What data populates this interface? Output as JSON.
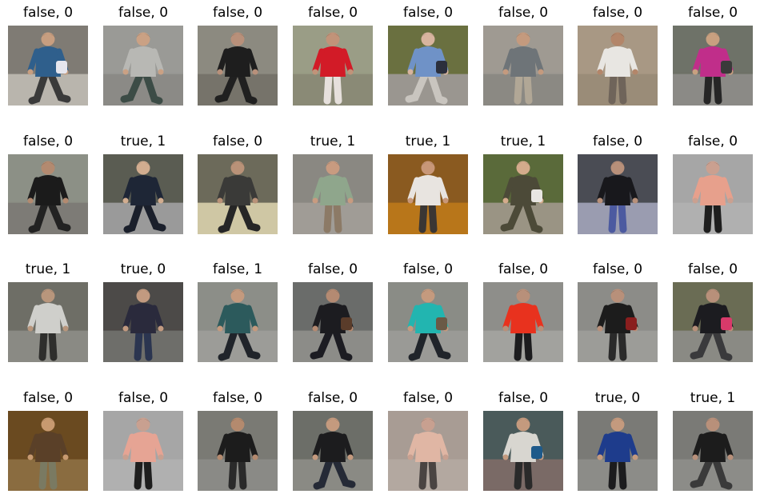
{
  "grid": {
    "rows": [
      [
        {
          "label": "false, 0",
          "scene": {
            "bg": "#7f7b74",
            "ground": "#b9b5ad",
            "top": "#2f5f8c",
            "pants": "#3a3a3a",
            "skin": "#c79e80",
            "pose": "walk-right",
            "bag": "#e6e6ee"
          }
        },
        {
          "label": "false, 0",
          "scene": {
            "bg": "#9a9a96",
            "ground": "#8b8a86",
            "top": "#b8b8b4",
            "pants": "#3c4c46",
            "skin": "#caa184",
            "pose": "walk-left",
            "bag": null
          }
        },
        {
          "label": "false, 0",
          "scene": {
            "bg": "#8c8a80",
            "ground": "#76736a",
            "top": "#1e1e1e",
            "pants": "#202020",
            "skin": "#b8907a",
            "pose": "walk-left",
            "bag": null
          }
        },
        {
          "label": "false, 0",
          "scene": {
            "bg": "#9a9d86",
            "ground": "#8a8a76",
            "top": "#d21b27",
            "pants": "#e6e0dc",
            "skin": "#c19379",
            "pose": "stand",
            "bag": null
          }
        },
        {
          "label": "false, 0",
          "scene": {
            "bg": "#6a7040",
            "ground": "#9a9690",
            "top": "#6f92c7",
            "pants": "#c9c5bf",
            "skin": "#d8b49e",
            "pose": "walk-left",
            "bag": "#2b2f3c"
          }
        },
        {
          "label": "false, 0",
          "scene": {
            "bg": "#9f9a92",
            "ground": "#8b8983",
            "top": "#6e7478",
            "pants": "#b1a796",
            "skin": "#c49a7e",
            "pose": "stand",
            "bag": null
          }
        },
        {
          "label": "false, 0",
          "scene": {
            "bg": "#a89884",
            "ground": "#9a8c78",
            "top": "#e8e6e2",
            "pants": "#6f645a",
            "skin": "#b3866a",
            "pose": "stand",
            "bag": null
          }
        },
        {
          "label": "false, 0",
          "scene": {
            "bg": "#6e7268",
            "ground": "#8b8a86",
            "top": "#c02e8a",
            "pants": "#262626",
            "skin": "#c8a080",
            "pose": "stand",
            "bag": "#3a3a3a"
          }
        }
      ],
      [
        {
          "label": "false, 0",
          "scene": {
            "bg": "#8c9086",
            "ground": "#7d7b76",
            "top": "#1b1b1b",
            "pants": "#222222",
            "skin": "#b38a70",
            "pose": "walk-right",
            "bag": null
          }
        },
        {
          "label": "true, 1",
          "scene": {
            "bg": "#5a5c52",
            "ground": "#9a9a9a",
            "top": "#1e2636",
            "pants": "#1a1f2b",
            "skin": "#d2ad90",
            "pose": "walk-right",
            "bag": null
          }
        },
        {
          "label": "false, 0",
          "scene": {
            "bg": "#6c6a5a",
            "ground": "#cfc7a4",
            "top": "#3a3a38",
            "pants": "#262626",
            "skin": "#b99278",
            "pose": "walk-right",
            "bag": null
          }
        },
        {
          "label": "true, 1",
          "scene": {
            "bg": "#8a8882",
            "ground": "#a09c96",
            "top": "#8fa68c",
            "pants": "#8c7a66",
            "skin": "#c89b80",
            "pose": "stand",
            "bag": null
          }
        },
        {
          "label": "true, 1",
          "scene": {
            "bg": "#8a5a20",
            "ground": "#b8761a",
            "top": "#e8e4e0",
            "pants": "#3a3634",
            "skin": "#c89778",
            "pose": "stand",
            "bag": null
          }
        },
        {
          "label": "true, 1",
          "scene": {
            "bg": "#5a6a3a",
            "ground": "#9a9484",
            "top": "#4c4a38",
            "pants": "#4c4a38",
            "skin": "#d4ab8c",
            "pose": "walk-left",
            "bag": "#e8e6e2"
          }
        },
        {
          "label": "false, 0",
          "scene": {
            "bg": "#4a4c54",
            "ground": "#9a9cb0",
            "top": "#18181c",
            "pants": "#4c5aa0",
            "skin": "#b8907a",
            "pose": "stand",
            "bag": null
          }
        },
        {
          "label": "false, 0",
          "scene": {
            "bg": "#a6a6a6",
            "ground": "#b0b0b0",
            "top": "#e7a08c",
            "pants": "#1e1e1e",
            "skin": "#caa090",
            "pose": "stand",
            "bag": null
          }
        }
      ],
      [
        {
          "label": "true, 1",
          "scene": {
            "bg": "#6e6e66",
            "ground": "#8a8a84",
            "top": "#cfcfcb",
            "pants": "#2e2e2c",
            "skin": "#b8967c",
            "pose": "stand",
            "bag": null
          }
        },
        {
          "label": "true, 0",
          "scene": {
            "bg": "#4c4a48",
            "ground": "#6e6e6a",
            "top": "#2a2a3c",
            "pants": "#2b3550",
            "skin": "#c29a80",
            "pose": "stand",
            "bag": null
          }
        },
        {
          "label": "false, 1",
          "scene": {
            "bg": "#8c8e88",
            "ground": "#9c9c98",
            "top": "#2c5a5c",
            "pants": "#20242a",
            "skin": "#c49a7e",
            "pose": "walk-right",
            "bag": null
          }
        },
        {
          "label": "false, 0",
          "scene": {
            "bg": "#6a6c6a",
            "ground": "#8c8c88",
            "top": "#1c1c20",
            "pants": "#1c1c22",
            "skin": "#b48a72",
            "pose": "walk-left",
            "bag": "#5a3c2a"
          }
        },
        {
          "label": "false, 0",
          "scene": {
            "bg": "#8a8c86",
            "ground": "#9a9a96",
            "top": "#22b5b0",
            "pants": "#20242a",
            "skin": "#c49a7e",
            "pose": "walk-right",
            "bag": "#6a5a46"
          }
        },
        {
          "label": "false, 0",
          "scene": {
            "bg": "#8e8e8a",
            "ground": "#a2a29e",
            "top": "#e8321e",
            "pants": "#1c1c1e",
            "skin": "#b8907a",
            "pose": "stand",
            "bag": null
          }
        },
        {
          "label": "false, 0",
          "scene": {
            "bg": "#8c8c88",
            "ground": "#9c9c98",
            "top": "#1c1c1c",
            "pants": "#2a2a2a",
            "skin": "#b8907a",
            "pose": "stand",
            "bag": "#8a1e1e"
          }
        },
        {
          "label": "false, 0",
          "scene": {
            "bg": "#6a6c54",
            "ground": "#8a8a84",
            "top": "#1c1c20",
            "pants": "#3a3a3c",
            "skin": "#b8907a",
            "pose": "walk-left",
            "bag": "#d83a6a"
          }
        }
      ],
      [
        {
          "label": "false, 0",
          "scene": {
            "bg": "#6a4a20",
            "ground": "#8a6c40",
            "top": "#5a4028",
            "pants": "#7a7a62",
            "skin": "#c89a70",
            "pose": "stand",
            "bag": null
          }
        },
        {
          "label": "false, 0",
          "scene": {
            "bg": "#a6a6a6",
            "ground": "#b0b0b0",
            "top": "#e6a494",
            "pants": "#1e1e1e",
            "skin": "#c8a090",
            "pose": "stand",
            "bag": null
          }
        },
        {
          "label": "false, 0",
          "scene": {
            "bg": "#7a7a74",
            "ground": "#8a8a86",
            "top": "#1c1c1c",
            "pants": "#2a2a2a",
            "skin": "#b48a6e",
            "pose": "stand",
            "bag": null
          }
        },
        {
          "label": "false, 0",
          "scene": {
            "bg": "#6c6e68",
            "ground": "#8a8a84",
            "top": "#1c1c1e",
            "pants": "#252a36",
            "skin": "#c49a7e",
            "pose": "walk-right",
            "bag": null
          }
        },
        {
          "label": "false, 0",
          "scene": {
            "bg": "#a89c94",
            "ground": "#b3a8a0",
            "top": "#e0b6a4",
            "pants": "#4a4442",
            "skin": "#c8a090",
            "pose": "stand",
            "bag": null
          }
        },
        {
          "label": "false, 0",
          "scene": {
            "bg": "#4a5a5a",
            "ground": "#7a6a66",
            "top": "#d8d6d0",
            "pants": "#2a2a2a",
            "skin": "#c49a7e",
            "pose": "stand",
            "bag": "#1e5a8a"
          }
        },
        {
          "label": "true, 0",
          "scene": {
            "bg": "#7a7a76",
            "ground": "#8c8c88",
            "top": "#1e3c8c",
            "pants": "#1c1c1e",
            "skin": "#c49a7e",
            "pose": "stand",
            "bag": null
          }
        },
        {
          "label": "true, 1",
          "scene": {
            "bg": "#7a7a76",
            "ground": "#8c8c88",
            "top": "#1c1c1c",
            "pants": "#3a3a3a",
            "skin": "#b8907a",
            "pose": "walk-left",
            "bag": null
          }
        }
      ]
    ]
  }
}
